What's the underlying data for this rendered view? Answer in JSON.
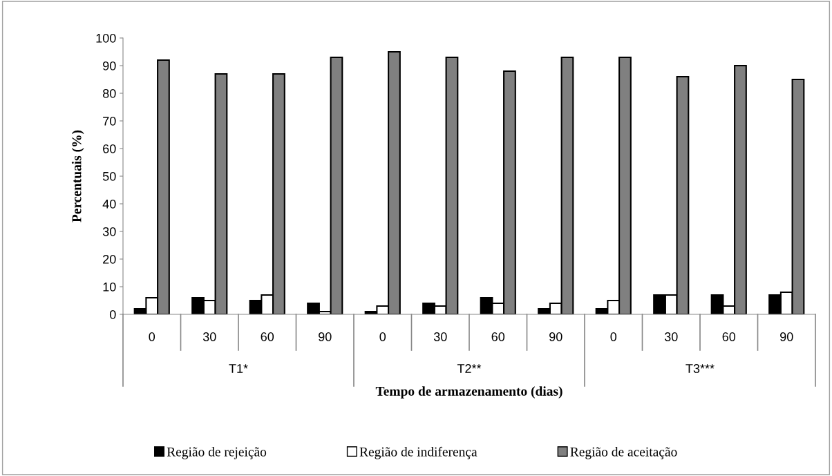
{
  "chart_data": {
    "type": "bar",
    "xlabel": "Tempo de armazenamento (dias)",
    "ylabel": "Percentuais (%)",
    "categories": [
      "0",
      "30",
      "60",
      "90",
      "0",
      "30",
      "60",
      "90",
      "0",
      "30",
      "60",
      "90"
    ],
    "annotations": [
      "T1*",
      "T2**",
      "T3***"
    ],
    "series": [
      {
        "name": "Região de rejeição",
        "color": "#000000",
        "values": [
          2,
          6,
          5,
          4,
          1,
          4,
          6,
          2,
          2,
          7,
          7,
          7
        ]
      },
      {
        "name": "Região de indiferença",
        "color": "#ffffff",
        "values": [
          6,
          5,
          7,
          1,
          3,
          3,
          4,
          4,
          5,
          7,
          3,
          8
        ]
      },
      {
        "name": "Região de aceitação",
        "color": "#808080",
        "values": [
          92,
          87,
          87,
          93,
          95,
          93,
          88,
          93,
          93,
          86,
          90,
          85
        ]
      }
    ],
    "ylim": [
      0,
      100
    ],
    "yticks": [
      0,
      10,
      20,
      30,
      40,
      50,
      60,
      70,
      80,
      90,
      100
    ],
    "grid": false,
    "legend": "bottom"
  }
}
